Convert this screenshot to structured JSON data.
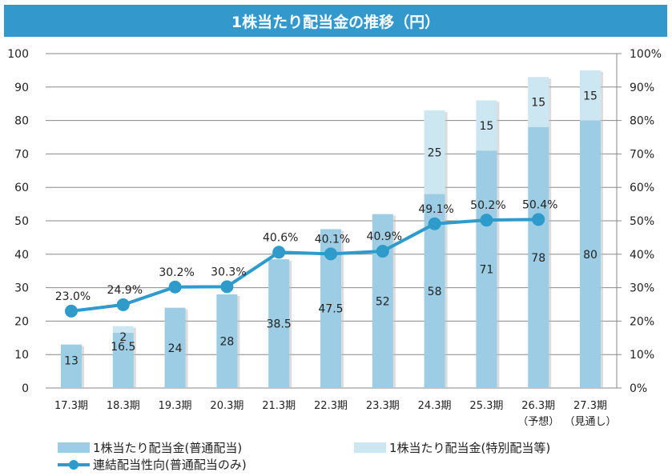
{
  "chart_data": {
    "type": "bar",
    "title": "1株当たり配当金の推移（円）",
    "categories": [
      "17.3期",
      "18.3期",
      "19.3期",
      "20.3期",
      "21.3期",
      "22.3期",
      "23.3期",
      "24.3期",
      "25.3期",
      "26.3期",
      "27.3期"
    ],
    "category_sublabels": [
      "",
      "",
      "",
      "",
      "",
      "",
      "",
      "",
      "",
      "（予想）",
      "（見通し）"
    ],
    "series": [
      {
        "name": "1株当たり配当金(普通配当)",
        "type": "bar",
        "axis": "left",
        "values": [
          13,
          16.5,
          24,
          28,
          38.5,
          47.5,
          52,
          58,
          71,
          78,
          80
        ],
        "color": "#9ccde4"
      },
      {
        "name": "1株当たり配当金(特別配当等)",
        "type": "bar",
        "axis": "left",
        "values": [
          0,
          2,
          0,
          0,
          0,
          0,
          0,
          25,
          15,
          15,
          15
        ],
        "color": "#cce6f2"
      },
      {
        "name": "連結配当性向(普通配当のみ)",
        "type": "line",
        "axis": "right",
        "values": [
          23.0,
          24.9,
          30.2,
          30.3,
          40.6,
          40.1,
          40.9,
          49.1,
          50.2,
          50.4,
          null
        ],
        "labels": [
          "23.0%",
          "24.9%",
          "30.2%",
          "30.3%",
          "40.6%",
          "40.1%",
          "40.9%",
          "49.1%",
          "50.2%",
          "50.4%",
          ""
        ],
        "color": "#2e9bcb"
      }
    ],
    "stacked": true,
    "ylim": [
      0,
      100
    ],
    "y_ticks": [
      "0",
      "10",
      "20",
      "30",
      "40",
      "50",
      "60",
      "70",
      "80",
      "90",
      "100"
    ],
    "y2lim": [
      0,
      100
    ],
    "y2_ticks": [
      "0%",
      "10%",
      "20%",
      "30%",
      "40%",
      "50%",
      "60%",
      "70%",
      "80%",
      "90%",
      "100%"
    ],
    "grid": true,
    "legend": "bottom"
  }
}
